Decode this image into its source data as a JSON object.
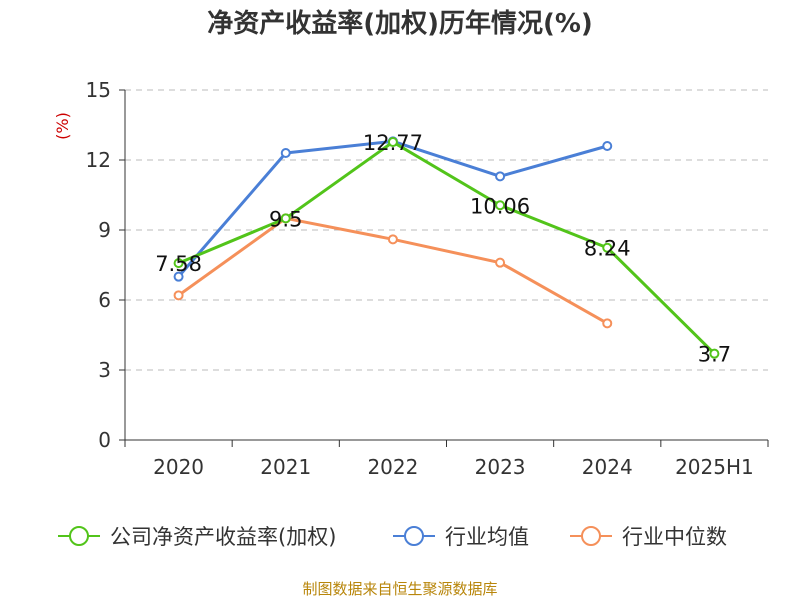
{
  "chart_data": {
    "type": "line",
    "title": "净资产收益率(加权)历年情况(%)",
    "ylabel": "(%)",
    "categories": [
      "2020",
      "2021",
      "2022",
      "2023",
      "2024",
      "2025H1"
    ],
    "ylim": [
      0,
      15
    ],
    "yticks": [
      0,
      3,
      6,
      9,
      12,
      15
    ],
    "grid": true,
    "legend_position": "bottom",
    "series": [
      {
        "name": "公司净资产收益率(加权)",
        "color": "#52c41a",
        "values": [
          7.58,
          9.5,
          12.77,
          10.06,
          8.24,
          3.7
        ],
        "labels": [
          "7.58",
          "9.5",
          "12.77",
          "10.06",
          "8.24",
          "3.7"
        ]
      },
      {
        "name": "行业均值",
        "color": "#4a7fd6",
        "values": [
          7.0,
          12.3,
          12.8,
          11.3,
          12.6,
          null
        ]
      },
      {
        "name": "行业中位数",
        "color": "#f5905a",
        "values": [
          6.2,
          9.5,
          8.6,
          7.6,
          5.0,
          null
        ]
      }
    ]
  },
  "source_note": "制图数据来自恒生聚源数据库"
}
